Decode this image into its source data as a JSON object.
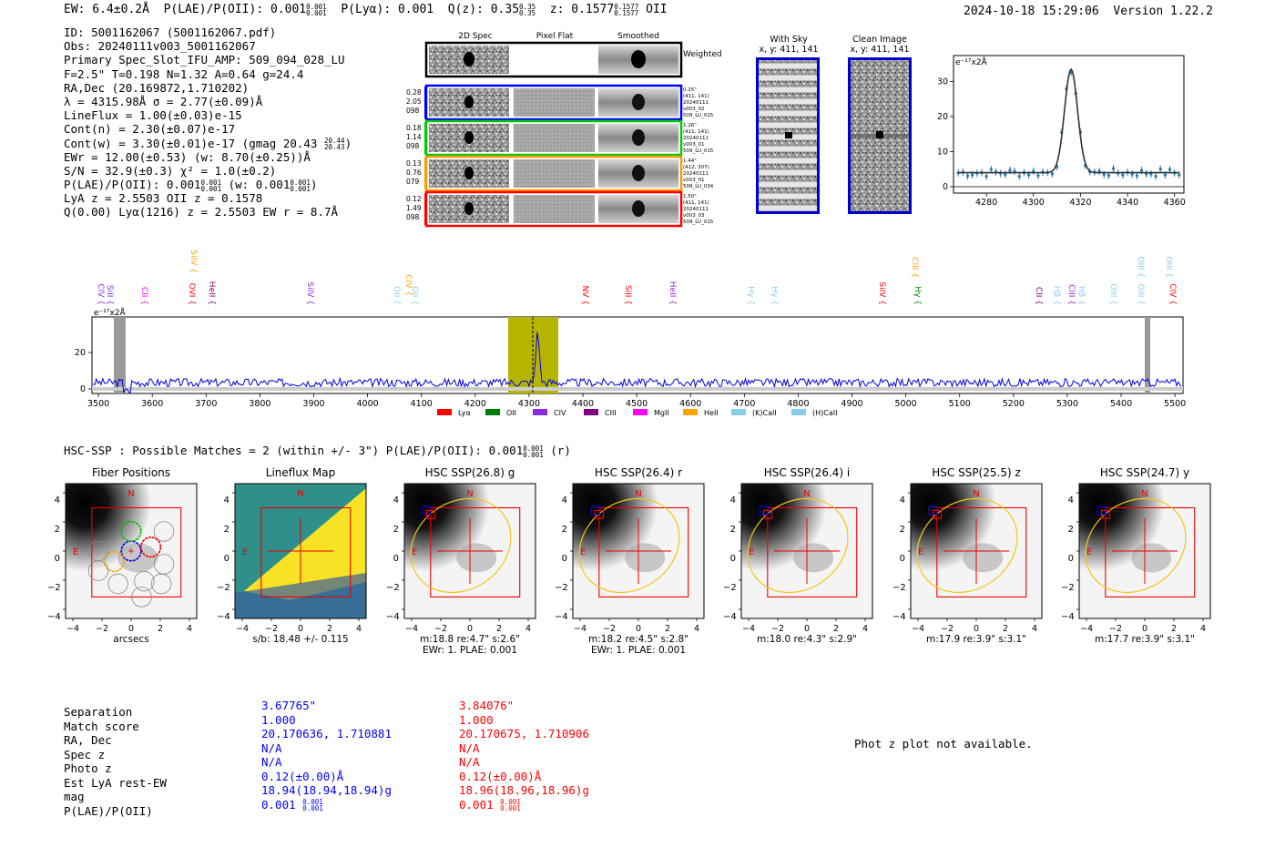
{
  "header": {
    "ew": "EW: 6.4±0.2Å",
    "plae_label": "P(LAE)/P(OII): 0.001",
    "plae_sup": "0.001",
    "plae_sub": "0.001",
    "plya": "P(Lyα): 0.001",
    "qz_label": "Q(z): 0.35",
    "qz_sup": "0.35",
    "qz_sub": "0.35",
    "z_label": "z: 0.1577",
    "z_sup": "0.1577",
    "z_sub": "0.1577",
    "z_line": "OII",
    "datetime": "2024-10-18 15:29:06",
    "version": "Version 1.22.2"
  },
  "info": {
    "id": "ID: 5001162067 (5001162067.pdf)",
    "obs": "Obs: 20240111v003_5001162067",
    "primary": "Primary Spec_Slot_IFU_AMP: 509_094_028_LU",
    "params": "F=2.5\"  T=0.198  N=1.32  A=0.64  g=24.4",
    "radec": "RA,Dec (20.169872,1.710202)",
    "lambda": "λ = 4315.98Å  σ = 2.77(±0.09)Å",
    "lineflux": "LineFlux = 1.00(±0.03)e-15",
    "contn": "Cont(n) = 2.30(±0.07)e-17",
    "contw": "Cont(w) = 3.30(±0.01)e-17 (gmag 20.43",
    "contw_sup": "20.44",
    "contw_sub": "20.43",
    "ewr": "EWr = 12.00(±0.53) (w: 8.70(±0.25))Å",
    "sn": "S/N = 32.9(±0.3)  χ² = 1.0(±0.2)",
    "plae_a": "P(LAE)/P(OII): 0.001",
    "plae_a_sup": "0.001",
    "plae_a_sub": "0.001",
    "plae_b": "(w: 0.001",
    "plae_b_sup": "0.001",
    "plae_b_sub": "0.001",
    "lya": "LyA z = 2.5503  OII z = 0.1578",
    "q": "Q(0.00) Lyα(1216) z = 2.5503  EW r = 8.7Å"
  },
  "spec2d": {
    "col_headers": [
      "2D Spec",
      "Pixel Flat",
      "Smoothed"
    ],
    "weighted_sum": "Weighted Sum",
    "rows": [
      {
        "left": [
          "0.28",
          "2.05",
          "098"
        ],
        "right": [
          "0.25\"",
          "(411, 141)",
          "20240111",
          "v003_02",
          "509_LU_015"
        ],
        "color": "#0000ff"
      },
      {
        "left": [
          "0.18",
          "1.14",
          "098"
        ],
        "right": [
          "1.26\"",
          "(411, 141)",
          "20240111",
          "v003_01",
          "509_LU_015"
        ],
        "color": "#00cc00"
      },
      {
        "left": [
          "0.13",
          "0.76",
          "079"
        ],
        "right": [
          "1.44\"",
          "(412, 307)",
          "20240111",
          "v003_01",
          "509_LU_034"
        ],
        "color": "#ff9900"
      },
      {
        "left": [
          "0.12",
          "1.49",
          "098"
        ],
        "right": [
          "1.50\"",
          "(411, 141)",
          "20240111",
          "v003_03",
          "509_LU_015"
        ],
        "color": "#ff0000"
      }
    ]
  },
  "sky": {
    "with_sky_title": "With Sky",
    "with_sky_xy": "x, y: 411, 141",
    "clean_title": "Clean Image",
    "clean_xy": "x, y: 411, 141"
  },
  "line_fit": {
    "unit": "e⁻¹⁷x2Å",
    "y_ticks": [
      "0",
      "10",
      "20",
      "30"
    ],
    "x_ticks": [
      "4280",
      "4300",
      "4320",
      "4340",
      "4360"
    ]
  },
  "full_spec": {
    "unit": "e⁻¹⁷x2Å",
    "y_ticks": [
      "0",
      "20"
    ],
    "x_ticks": [
      "3500",
      "3600",
      "3700",
      "3800",
      "3900",
      "4000",
      "4100",
      "4200",
      "4300",
      "4400",
      "4500",
      "4600",
      "4700",
      "4800",
      "4900",
      "5000",
      "5100",
      "5200",
      "5300",
      "5400",
      "5500"
    ],
    "legend": [
      {
        "label": "Lyα",
        "color": "#ff0000"
      },
      {
        "label": "OII",
        "color": "#008000"
      },
      {
        "label": "CIV",
        "color": "#8a2be2"
      },
      {
        "label": "CIII",
        "color": "#800080"
      },
      {
        "label": "MgII",
        "color": "#ff00ff"
      },
      {
        "label": "HeII",
        "color": "#ffa500"
      },
      {
        "label": "(K)CaII",
        "color": "#87ceeb"
      },
      {
        "label": "(H)CaII",
        "color": "#87ceeb"
      }
    ],
    "line_labels": [
      {
        "text": "CIV",
        "color": "#8a2be2"
      },
      {
        "text": "SiII",
        "color": "#8a2be2"
      },
      {
        "text": "CII",
        "color": "#ff00ff"
      },
      {
        "text": "SiIV",
        "color": "#ffa500"
      },
      {
        "text": "OVI",
        "color": "#ff0000"
      },
      {
        "text": "HeII",
        "color": "#800080"
      },
      {
        "text": "SiIV",
        "color": "#8a2be2"
      },
      {
        "text": "OII",
        "color": "#87ceeb"
      },
      {
        "text": "CIV",
        "color": "#ffa500"
      },
      {
        "text": "OII",
        "color": "#87ceeb"
      },
      {
        "text": "NV",
        "color": "#ff0000"
      },
      {
        "text": "SiII",
        "color": "#ff0000"
      },
      {
        "text": "HeII",
        "color": "#8a2be2"
      },
      {
        "text": "Hγ",
        "color": "#87ceeb"
      },
      {
        "text": "Hγ",
        "color": "#87ceeb"
      },
      {
        "text": "SiIV",
        "color": "#ff0000"
      },
      {
        "text": "CIII",
        "color": "#ffa500"
      },
      {
        "text": "Hγ",
        "color": "#008000"
      },
      {
        "text": "CII",
        "color": "#800080"
      },
      {
        "text": "Hβ",
        "color": "#87ceeb"
      },
      {
        "text": "CIII",
        "color": "#8a2be2"
      },
      {
        "text": "Hβ",
        "color": "#87ceeb"
      },
      {
        "text": "OIII",
        "color": "#87ceeb"
      },
      {
        "text": "OIII",
        "color": "#87ceeb"
      },
      {
        "text": "OIII",
        "color": "#87ceeb"
      },
      {
        "text": "OIII",
        "color": "#87ceeb"
      },
      {
        "text": "CIV",
        "color": "#ff0000"
      }
    ]
  },
  "hsc": {
    "title": "HSC-SSP : Possible Matches = 2 (within +/- 3\")  P(LAE)/P(OII): 0.001",
    "title_sup": "0.001",
    "title_sub": "0.001",
    "title_band": "(r)",
    "panel_ticks_y": [
      "4",
      "2",
      "0",
      "−2",
      "−4"
    ],
    "panel_ticks_x": [
      "−4",
      "−2",
      "0",
      "2",
      "4"
    ],
    "compass_n": "N",
    "compass_e": "E",
    "panels": [
      {
        "title": "Fiber Positions",
        "caption1": "arcsecs",
        "caption2": ""
      },
      {
        "title": "Lineflux Map",
        "caption1": "s/b: 18.48 +/- 0.115",
        "caption2": ""
      },
      {
        "title": "HSC SSP(26.8) g",
        "caption1": "m:18.8  re:4.7\"  s:2.6\"",
        "caption2": "EWr: 1. PLAE: 0.001"
      },
      {
        "title": "HSC SSP(26.4) r",
        "caption1": "m:18.2  re:4.5\"  s:2.8\"",
        "caption2": "EWr: 1. PLAE: 0.001"
      },
      {
        "title": "HSC SSP(26.4) i",
        "caption1": "m:18.0  re:4.3\"  s:2.9\"",
        "caption2": ""
      },
      {
        "title": "HSC SSP(25.5) z",
        "caption1": "m:17.9  re:3.9\"  s:3.1\"",
        "caption2": ""
      },
      {
        "title": "HSC SSP(24.7) y",
        "caption1": "m:17.7  re:3.9\"  s:3.1\"",
        "caption2": ""
      }
    ]
  },
  "matches": {
    "labels": [
      "Separation",
      "Match score",
      "RA, Dec",
      "Spec z",
      "Photo z",
      "Est LyA rest-EW",
      "mag",
      "P(LAE)/P(OII)"
    ],
    "m1": {
      "color": "#0000ff",
      "values": [
        "3.67765\"",
        "1.000",
        "20.170636, 1.710881",
        "N/A",
        "N/A",
        "0.12(±0.00)Å",
        "18.94(18.94,18.94)g",
        "0.001"
      ],
      "plae_sup": "0.001",
      "plae_sub": "0.001"
    },
    "m2": {
      "color": "#ff0000",
      "values": [
        "3.84076\"",
        "1.000",
        "20.170675, 1.710906",
        "N/A",
        "N/A",
        "0.12(±0.00)Å",
        "18.96(18.96,18.96)g",
        "0.001"
      ],
      "plae_sup": "0.001",
      "plae_sub": "0.001"
    }
  },
  "photz": {
    "message": "Phot z plot not available."
  }
}
